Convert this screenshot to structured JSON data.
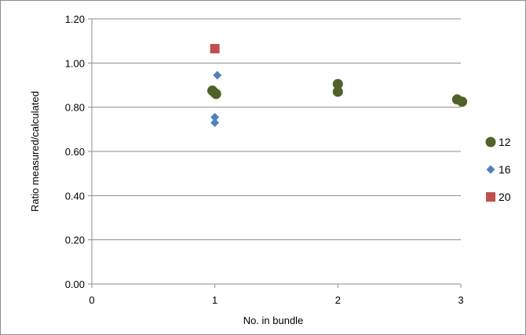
{
  "chart_data": {
    "type": "scatter",
    "title": "",
    "xlabel": "No. in bundle",
    "ylabel": "Ratio measured/calculated",
    "xlim": [
      0,
      3
    ],
    "ylim": [
      0,
      1.2
    ],
    "x_ticks": [
      "0",
      "1",
      "2",
      "3"
    ],
    "y_ticks": [
      "0.00",
      "0.20",
      "0.40",
      "0.60",
      "0.80",
      "1.00",
      "1.20"
    ],
    "grid": "horizontal",
    "legend_position": "right",
    "series": [
      {
        "name": "12",
        "marker": "circle",
        "color": "#4f6228",
        "points": [
          {
            "x": 0.98,
            "y": 0.875
          },
          {
            "x": 1.0,
            "y": 0.865
          },
          {
            "x": 1.01,
            "y": 0.86
          },
          {
            "x": 2.0,
            "y": 0.905
          },
          {
            "x": 2.0,
            "y": 0.87
          },
          {
            "x": 2.97,
            "y": 0.835
          },
          {
            "x": 3.01,
            "y": 0.825
          }
        ]
      },
      {
        "name": "16",
        "marker": "diamond",
        "color": "#4f81bd",
        "points": [
          {
            "x": 1.02,
            "y": 0.945
          },
          {
            "x": 1.0,
            "y": 0.755
          },
          {
            "x": 1.0,
            "y": 0.73
          }
        ]
      },
      {
        "name": "20",
        "marker": "square",
        "color": "#c0504d",
        "points": [
          {
            "x": 1.0,
            "y": 1.065
          }
        ]
      }
    ]
  }
}
